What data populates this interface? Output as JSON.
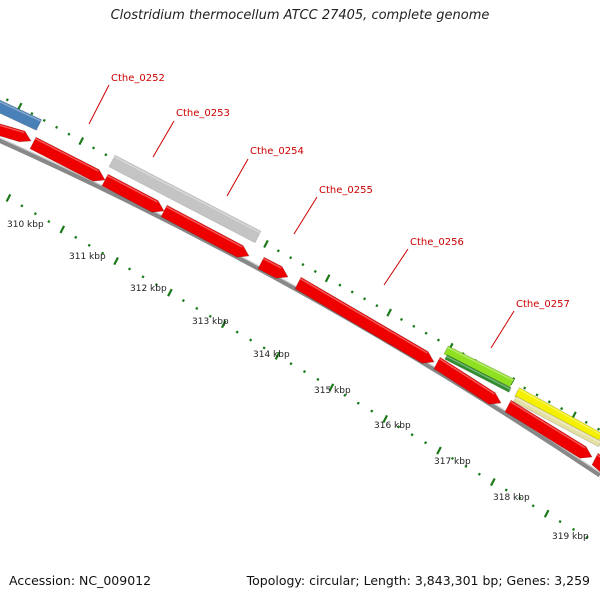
{
  "title": "Clostridium thermocellum ATCC 27405, complete genome",
  "footer": {
    "accession": "Accession: NC_009012",
    "topology": "Topology: circular; Length: 3,843,301 bp; Genes: 3,259"
  },
  "colors": {
    "gene_forward_red": "#ee0000",
    "backbone_gray": "#888888",
    "tick_green": "#1a7a1a",
    "label_red": "#cc0000",
    "feature_blue": "#4a80b8",
    "feature_gray": "#c4c4c4",
    "feature_lightgreen": "#8ee020",
    "feature_darkgreen": "#2f8f2f",
    "feature_yellow": "#f4f000",
    "feature_khaki": "#e4e0a4"
  },
  "gene_labels": [
    "Cthe_0252",
    "Cthe_0253",
    "Cthe_0254",
    "Cthe_0255",
    "Cthe_0256",
    "Cthe_0257"
  ],
  "scale_labels": [
    "310 kbp",
    "311 kbp",
    "312 kbp",
    "313 kbp",
    "314 kbp",
    "315 kbp",
    "316 kbp",
    "317 kbp",
    "318 kbp",
    "319 kbp"
  ]
}
